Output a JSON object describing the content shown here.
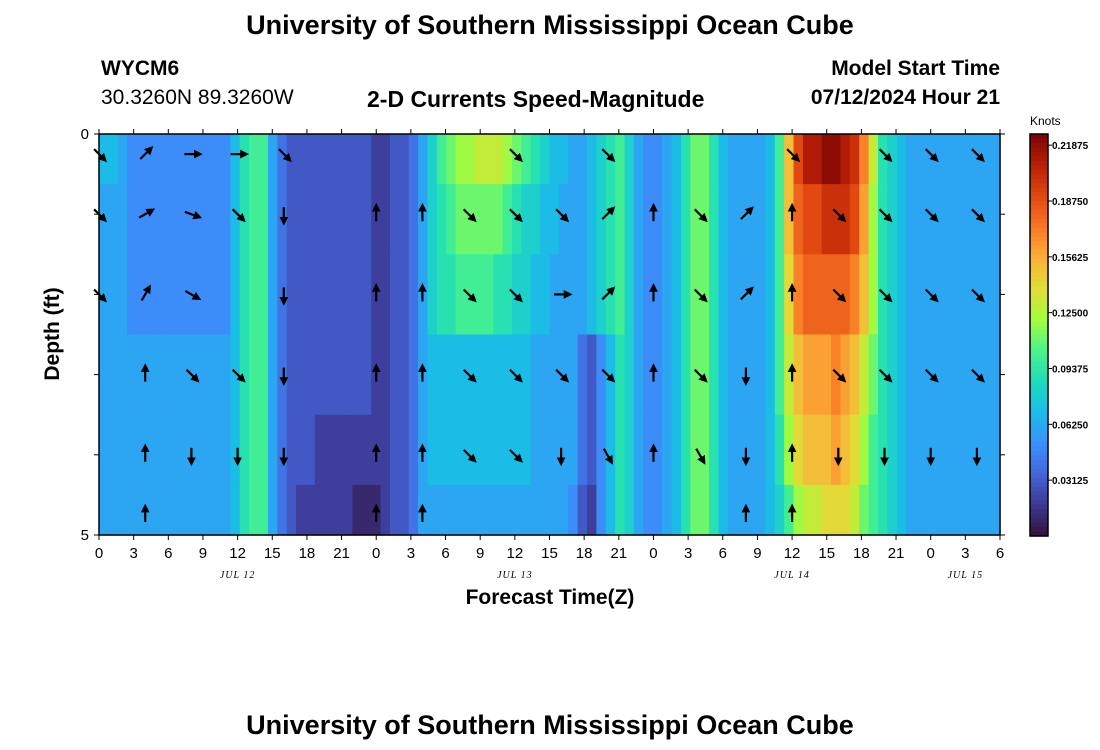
{
  "header": {
    "title": "University of Southern Mississippi Ocean Cube",
    "station": "WYCM6",
    "coords": "30.3260N  89.3260W",
    "subtitle": "2-D Currents Speed-Magnitude",
    "model_start_label": "Model Start Time",
    "model_start_value": "07/12/2024 Hour 21",
    "footer_title": "University of Southern Mississippi Ocean Cube"
  },
  "colors": {
    "colormap": [
      "#30123b",
      "#3d3891",
      "#4465d8",
      "#3b91fd",
      "#1bbce8",
      "#1edcbb",
      "#4bf38a",
      "#a4fc3c",
      "#e1dd37",
      "#fcaf38",
      "#f87724",
      "#e04810",
      "#b81f06",
      "#7a0403"
    ]
  },
  "chart_data": {
    "type": "heatmap",
    "xlabel": "Forecast Time(Z)",
    "ylabel": "Depth (ft)",
    "colorbar_units": "Knots",
    "colorbar_range": [
      0,
      0.225
    ],
    "colorbar_ticks": [
      "0.03125",
      "0.06250",
      "0.09375",
      "0.12500",
      "0.15625",
      "0.18750",
      "0.21875"
    ],
    "colorbar_tick_values": [
      0.03125,
      0.0625,
      0.09375,
      0.125,
      0.15625,
      0.1875,
      0.21875
    ],
    "x_tick_labels": [
      "0",
      "3",
      "6",
      "9",
      "12",
      "15",
      "18",
      "21",
      "0",
      "3",
      "6",
      "9",
      "12",
      "15",
      "18",
      "21",
      "0",
      "3",
      "6",
      "9",
      "12",
      "15",
      "18",
      "21",
      "0",
      "3",
      "6"
    ],
    "date_labels": [
      {
        "label": "JUL 12",
        "hour": 12
      },
      {
        "label": "JUL 13",
        "hour": 36
      },
      {
        "label": "JUL 14",
        "hour": 60
      },
      {
        "label": "JUL 15",
        "hour": 75
      }
    ],
    "x_range_hours": [
      0,
      78
    ],
    "y_tick_labels": [
      {
        "label": "0",
        "depth": 0
      },
      {
        "label": "5",
        "depth": 5
      }
    ],
    "depth_range": [
      0,
      5
    ],
    "rows": [
      {
        "depth": 0.25,
        "values": [
          0.07,
          0.07,
          0.06,
          0.05,
          0.05,
          0.05,
          0.05,
          0.05,
          0.05,
          0.05,
          0.05,
          0.05,
          0.05,
          0.05,
          0.07,
          0.09,
          0.1,
          0.1,
          0.06,
          0.04,
          0.03,
          0.03,
          0.03,
          0.03,
          0.03,
          0.03,
          0.03,
          0.03,
          0.03,
          0.02,
          0.02,
          0.03,
          0.03,
          0.04,
          0.06,
          0.08,
          0.1,
          0.11,
          0.12,
          0.12,
          0.13,
          0.13,
          0.13,
          0.12,
          0.11,
          0.1,
          0.09,
          0.08,
          0.07,
          0.07,
          0.06,
          0.06,
          0.07,
          0.08,
          0.09,
          0.1,
          0.08,
          0.06,
          0.05,
          0.05,
          0.06,
          0.07,
          0.09,
          0.11,
          0.11,
          0.09,
          0.07,
          0.06,
          0.06,
          0.06,
          0.06,
          0.07,
          0.1,
          0.15,
          0.19,
          0.21,
          0.21,
          0.22,
          0.22,
          0.21,
          0.2,
          0.17,
          0.13,
          0.09,
          0.08,
          0.07,
          0.06,
          0.06,
          0.06,
          0.06,
          0.06,
          0.06,
          0.06,
          0.06,
          0.06,
          0.06
        ]
      },
      {
        "depth": 1.0,
        "values": [
          0.06,
          0.06,
          0.06,
          0.05,
          0.05,
          0.05,
          0.05,
          0.05,
          0.05,
          0.05,
          0.05,
          0.05,
          0.05,
          0.05,
          0.07,
          0.09,
          0.1,
          0.1,
          0.06,
          0.04,
          0.03,
          0.03,
          0.03,
          0.03,
          0.03,
          0.03,
          0.03,
          0.03,
          0.03,
          0.02,
          0.02,
          0.03,
          0.03,
          0.04,
          0.06,
          0.08,
          0.09,
          0.1,
          0.11,
          0.11,
          0.11,
          0.11,
          0.11,
          0.1,
          0.09,
          0.08,
          0.08,
          0.07,
          0.07,
          0.06,
          0.06,
          0.06,
          0.07,
          0.08,
          0.09,
          0.1,
          0.08,
          0.06,
          0.05,
          0.05,
          0.06,
          0.07,
          0.09,
          0.11,
          0.11,
          0.09,
          0.07,
          0.06,
          0.06,
          0.06,
          0.06,
          0.07,
          0.1,
          0.15,
          0.18,
          0.19,
          0.19,
          0.2,
          0.2,
          0.2,
          0.19,
          0.16,
          0.12,
          0.09,
          0.08,
          0.07,
          0.06,
          0.06,
          0.06,
          0.06,
          0.06,
          0.06,
          0.06,
          0.06,
          0.06,
          0.06
        ]
      },
      {
        "depth": 2.0,
        "values": [
          0.06,
          0.06,
          0.06,
          0.05,
          0.05,
          0.05,
          0.05,
          0.05,
          0.05,
          0.05,
          0.05,
          0.05,
          0.05,
          0.05,
          0.07,
          0.09,
          0.1,
          0.1,
          0.06,
          0.04,
          0.03,
          0.03,
          0.03,
          0.03,
          0.03,
          0.03,
          0.03,
          0.03,
          0.03,
          0.02,
          0.02,
          0.03,
          0.03,
          0.04,
          0.06,
          0.08,
          0.09,
          0.09,
          0.1,
          0.1,
          0.1,
          0.1,
          0.09,
          0.09,
          0.08,
          0.08,
          0.07,
          0.07,
          0.06,
          0.06,
          0.06,
          0.06,
          0.07,
          0.08,
          0.09,
          0.1,
          0.08,
          0.06,
          0.05,
          0.05,
          0.06,
          0.07,
          0.09,
          0.11,
          0.11,
          0.09,
          0.07,
          0.06,
          0.06,
          0.06,
          0.06,
          0.07,
          0.1,
          0.14,
          0.17,
          0.18,
          0.18,
          0.18,
          0.18,
          0.18,
          0.17,
          0.15,
          0.12,
          0.09,
          0.08,
          0.07,
          0.06,
          0.06,
          0.06,
          0.06,
          0.06,
          0.06,
          0.06,
          0.06,
          0.06,
          0.06
        ]
      },
      {
        "depth": 3.0,
        "values": [
          0.06,
          0.06,
          0.06,
          0.06,
          0.06,
          0.06,
          0.06,
          0.06,
          0.06,
          0.06,
          0.06,
          0.06,
          0.06,
          0.06,
          0.07,
          0.09,
          0.1,
          0.1,
          0.06,
          0.04,
          0.03,
          0.03,
          0.03,
          0.03,
          0.03,
          0.03,
          0.03,
          0.03,
          0.03,
          0.02,
          0.02,
          0.03,
          0.03,
          0.04,
          0.06,
          0.07,
          0.07,
          0.07,
          0.07,
          0.07,
          0.07,
          0.07,
          0.07,
          0.07,
          0.07,
          0.07,
          0.06,
          0.06,
          0.06,
          0.06,
          0.06,
          0.04,
          0.03,
          0.05,
          0.07,
          0.09,
          0.08,
          0.06,
          0.05,
          0.05,
          0.06,
          0.07,
          0.09,
          0.11,
          0.11,
          0.09,
          0.07,
          0.06,
          0.06,
          0.06,
          0.06,
          0.07,
          0.1,
          0.13,
          0.15,
          0.16,
          0.16,
          0.16,
          0.17,
          0.16,
          0.15,
          0.13,
          0.11,
          0.09,
          0.08,
          0.07,
          0.06,
          0.06,
          0.06,
          0.06,
          0.06,
          0.06,
          0.06,
          0.06,
          0.06,
          0.06
        ]
      },
      {
        "depth": 4.0,
        "values": [
          0.06,
          0.06,
          0.06,
          0.06,
          0.06,
          0.06,
          0.06,
          0.06,
          0.06,
          0.06,
          0.06,
          0.06,
          0.06,
          0.06,
          0.07,
          0.09,
          0.1,
          0.1,
          0.06,
          0.04,
          0.03,
          0.03,
          0.03,
          0.02,
          0.02,
          0.02,
          0.02,
          0.02,
          0.02,
          0.02,
          0.02,
          0.03,
          0.03,
          0.04,
          0.06,
          0.07,
          0.07,
          0.07,
          0.07,
          0.07,
          0.07,
          0.07,
          0.07,
          0.07,
          0.07,
          0.07,
          0.06,
          0.06,
          0.06,
          0.06,
          0.06,
          0.04,
          0.03,
          0.05,
          0.07,
          0.09,
          0.08,
          0.06,
          0.05,
          0.05,
          0.06,
          0.07,
          0.09,
          0.11,
          0.11,
          0.09,
          0.07,
          0.06,
          0.06,
          0.06,
          0.06,
          0.07,
          0.09,
          0.12,
          0.14,
          0.15,
          0.15,
          0.15,
          0.16,
          0.15,
          0.14,
          0.12,
          0.1,
          0.09,
          0.08,
          0.07,
          0.06,
          0.06,
          0.06,
          0.06,
          0.06,
          0.06,
          0.06,
          0.06,
          0.06,
          0.06
        ]
      },
      {
        "depth": 4.75,
        "values": [
          0.06,
          0.06,
          0.06,
          0.06,
          0.06,
          0.06,
          0.06,
          0.06,
          0.06,
          0.06,
          0.06,
          0.06,
          0.06,
          0.06,
          0.07,
          0.09,
          0.1,
          0.1,
          0.06,
          0.04,
          0.03,
          0.02,
          0.02,
          0.02,
          0.02,
          0.02,
          0.02,
          0.01,
          0.01,
          0.01,
          0.02,
          0.03,
          0.03,
          0.04,
          0.06,
          0.06,
          0.06,
          0.06,
          0.06,
          0.06,
          0.06,
          0.06,
          0.06,
          0.06,
          0.06,
          0.06,
          0.06,
          0.06,
          0.06,
          0.06,
          0.05,
          0.03,
          0.02,
          0.05,
          0.07,
          0.09,
          0.08,
          0.06,
          0.05,
          0.05,
          0.06,
          0.07,
          0.09,
          0.11,
          0.11,
          0.09,
          0.07,
          0.06,
          0.06,
          0.06,
          0.06,
          0.07,
          0.08,
          0.1,
          0.12,
          0.13,
          0.13,
          0.14,
          0.14,
          0.14,
          0.13,
          0.11,
          0.1,
          0.09,
          0.08,
          0.07,
          0.06,
          0.06,
          0.06,
          0.06,
          0.06,
          0.06,
          0.06,
          0.06,
          0.06,
          0.06
        ]
      }
    ],
    "arrows_hours": [
      0,
      4,
      8,
      12,
      16,
      20,
      24,
      28,
      32,
      36,
      40,
      44,
      48,
      52,
      56,
      60,
      64,
      68,
      72,
      76
    ],
    "arrows": [
      [
        135,
        45,
        90,
        90,
        135,
        null,
        null,
        null,
        null,
        135,
        null,
        135,
        null,
        null,
        null,
        135,
        null,
        135,
        135,
        135
      ],
      [
        135,
        60,
        110,
        135,
        180,
        null,
        0,
        0,
        135,
        135,
        135,
        45,
        0,
        135,
        45,
        0,
        135,
        135,
        135,
        135
      ],
      [
        135,
        30,
        120,
        null,
        180,
        null,
        0,
        0,
        135,
        135,
        90,
        45,
        0,
        135,
        45,
        0,
        135,
        135,
        135,
        135
      ],
      [
        null,
        0,
        135,
        135,
        180,
        null,
        0,
        0,
        135,
        135,
        135,
        135,
        0,
        135,
        180,
        0,
        135,
        135,
        135,
        135
      ],
      [
        null,
        0,
        180,
        180,
        180,
        null,
        0,
        0,
        135,
        135,
        180,
        150,
        0,
        150,
        180,
        0,
        180,
        180,
        180,
        180
      ],
      [
        null,
        0,
        null,
        null,
        null,
        null,
        0,
        0,
        null,
        null,
        null,
        null,
        null,
        null,
        0,
        0,
        null,
        null,
        null,
        null
      ]
    ]
  }
}
